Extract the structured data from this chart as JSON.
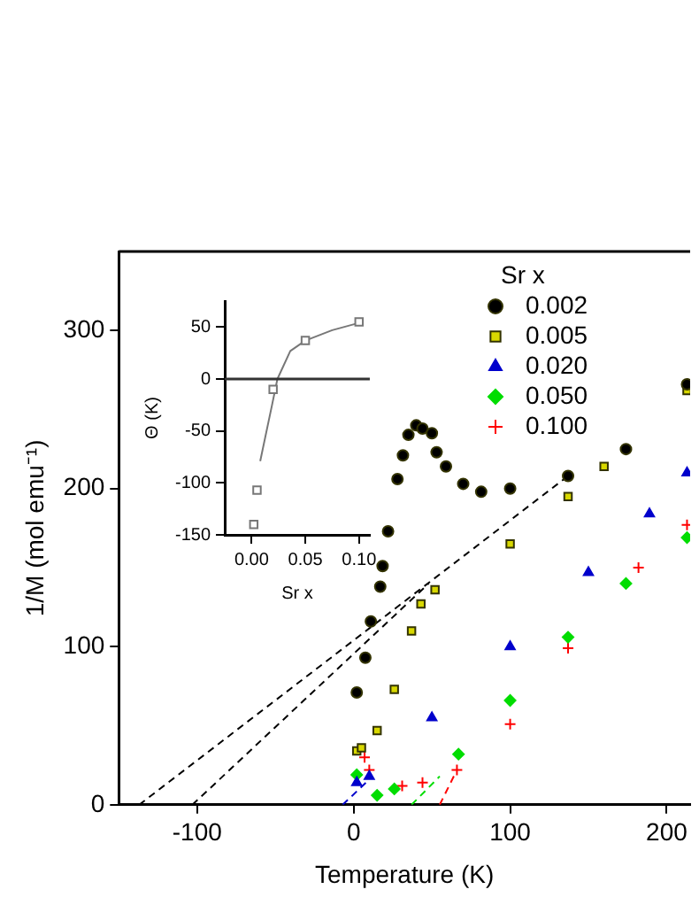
{
  "chart_data": [
    {
      "type": "scatter",
      "xlabel": "Temperature (K)",
      "ylabel": "1/M (mol emu⁻¹)",
      "legend_title": "Sr x",
      "legend": "top right",
      "grid": false,
      "xlim": [
        -150,
        215
      ],
      "ylim": [
        0,
        350
      ],
      "xticks": [
        -100,
        0,
        100,
        200
      ],
      "yticks": [
        0,
        100,
        200,
        300
      ],
      "series": [
        {
          "name": "0.002",
          "color": "#000000",
          "marker": "circle",
          "x": [
            2,
            7.5,
            11,
            17,
            18.5,
            22,
            28,
            31.5,
            35,
            40,
            44,
            50,
            53,
            59,
            70,
            81.5,
            100,
            137,
            174,
            213
          ],
          "values": [
            71,
            93,
            116,
            138,
            151,
            173,
            206,
            221,
            234,
            240,
            238,
            235,
            223,
            214,
            203,
            198,
            200,
            208,
            225,
            266
          ]
        },
        {
          "name": "0.005",
          "color": "#d8d800",
          "marker": "square",
          "x": [
            2,
            5,
            15,
            26,
            37,
            43,
            52,
            100,
            137,
            160,
            213
          ],
          "values": [
            34,
            36,
            47,
            73,
            110,
            127,
            136,
            165,
            195,
            214,
            262
          ]
        },
        {
          "name": "0.020",
          "color": "#0000cc",
          "marker": "triangle",
          "x": [
            2,
            10,
            50,
            100,
            150,
            189,
            213
          ],
          "values": [
            14,
            18,
            55,
            100,
            147,
            184,
            210
          ]
        },
        {
          "name": "0.050",
          "color": "#00dd00",
          "marker": "diamond",
          "x": [
            2,
            15,
            26,
            67,
            100,
            137,
            174,
            213
          ],
          "values": [
            19,
            6,
            10,
            32,
            66,
            106,
            140,
            169
          ]
        },
        {
          "name": "0.100",
          "color": "#ff0000",
          "marker": "cross",
          "x": [
            7,
            10,
            31,
            44,
            66,
            100,
            137,
            182,
            213
          ],
          "values": [
            30,
            22,
            12,
            14,
            22,
            51,
            99,
            150,
            177
          ]
        },
        {
          "type": "line",
          "color": "#000000",
          "marker": "none",
          "line_style": "dashed",
          "x": [
            -137,
            137
          ],
          "values": [
            0,
            208
          ]
        },
        {
          "type": "line",
          "color": "#000000",
          "marker": "none",
          "line_style": "dashed",
          "x": [
            -103,
            48
          ],
          "values": [
            0,
            140
          ]
        },
        {
          "type": "line",
          "color": "#0000cc",
          "marker": "none",
          "line_style": "dashed",
          "x": [
            -7,
            10
          ],
          "values": [
            0,
            16
          ]
        },
        {
          "type": "line",
          "color": "#00dd00",
          "marker": "none",
          "line_style": "dashed",
          "x": [
            37,
            55
          ],
          "values": [
            0,
            18
          ]
        },
        {
          "type": "line",
          "color": "#ff0000",
          "marker": "none",
          "line_style": "dashed",
          "x": [
            55,
            65
          ],
          "values": [
            0,
            20
          ]
        }
      ]
    },
    {
      "type": "scatter",
      "xlabel": "Sr x",
      "ylabel": "Θ (K)",
      "grid": false,
      "xlim": [
        -0.025,
        0.11
      ],
      "ylim": [
        -150,
        75
      ],
      "xticks": [
        {
          "value": 0,
          "label": "0.00"
        },
        {
          "value": 0.05,
          "label": "0.05"
        },
        {
          "value": 0.1,
          "label": "0.10"
        }
      ],
      "yticks": [
        -150,
        -100,
        -50,
        0,
        50
      ],
      "ref_lines": [
        {
          "axis": "y",
          "value": 0,
          "color": "#333333"
        }
      ],
      "series": [
        {
          "color": "#777777",
          "marker": "square",
          "x": [
            0.002,
            0.005,
            0.02,
            0.05,
            0.1
          ],
          "values": [
            -140,
            -107,
            -10,
            37,
            55
          ]
        },
        {
          "type": "line",
          "color": "#777777",
          "marker": "none",
          "line_style": "solid",
          "x": [
            0.008,
            0.019,
            0.024,
            0.036,
            0.05,
            0.075,
            0.1
          ],
          "values": [
            -79,
            -25,
            0,
            27,
            37,
            47,
            54
          ]
        }
      ]
    }
  ]
}
